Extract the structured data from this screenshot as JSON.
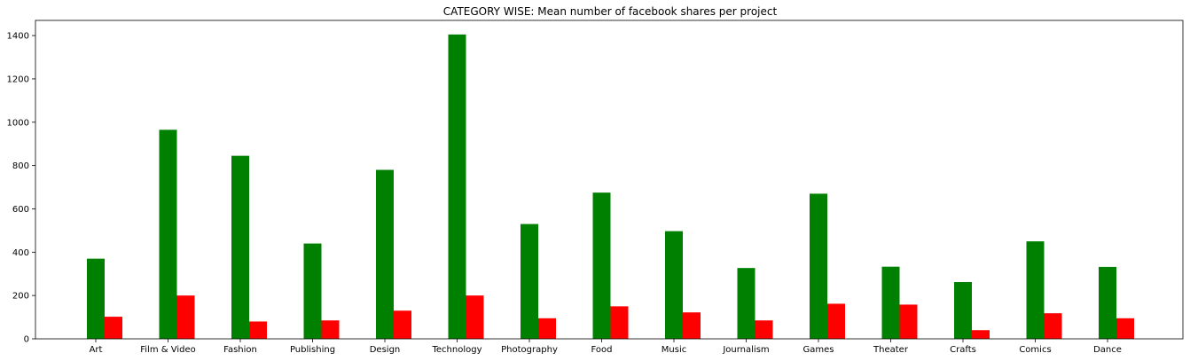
{
  "chart_data": {
    "type": "bar",
    "title": "CATEGORY WISE: Mean number of facebook shares per project",
    "xlabel": "",
    "ylabel": "",
    "categories": [
      "Art",
      "Film & Video",
      "Fashion",
      "Publishing",
      "Design",
      "Technology",
      "Photography",
      "Food",
      "Music",
      "Journalism",
      "Games",
      "Theater",
      "Crafts",
      "Comics",
      "Dance"
    ],
    "series": [
      {
        "color": "#008000",
        "values": [
          370,
          965,
          845,
          440,
          780,
          1405,
          530,
          675,
          497,
          327,
          670,
          333,
          262,
          450,
          332
        ]
      },
      {
        "color": "#ff0000",
        "values": [
          102,
          200,
          80,
          85,
          130,
          200,
          95,
          150,
          122,
          85,
          162,
          158,
          40,
          118,
          95
        ]
      }
    ],
    "ylim": [
      0,
      1470
    ],
    "yticks": [
      0,
      200,
      400,
      600,
      800,
      1000,
      1200,
      1400
    ],
    "grid": false,
    "legend": "none"
  }
}
